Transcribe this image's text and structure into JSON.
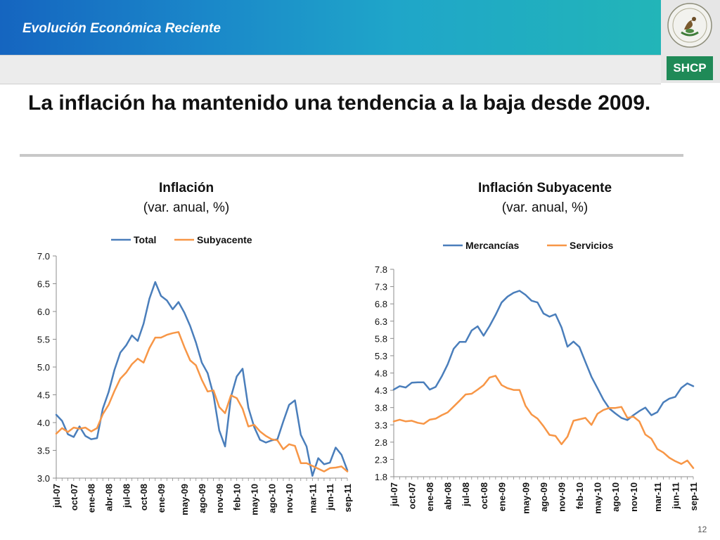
{
  "header": {
    "title": "Evolución Económica Reciente",
    "logo_label": "SHCP",
    "seal_text": "ESTADOS UNIDOS MEXICANOS"
  },
  "headline": "La inflación ha mantenido una tendencia a la baja desde 2009.",
  "page_number": "12",
  "colors": {
    "header_blue": "#1a86c9",
    "header_teal": "#22b5b8",
    "shcp_green": "#1f8a57",
    "series_blue": "#4a7ebb",
    "series_orange": "#f79646"
  },
  "chart_data": [
    {
      "type": "line",
      "title": "Inflación",
      "subtitle": "(var. anual, %)",
      "xlabel": "",
      "ylabel": "",
      "ylim": [
        3.0,
        7.0
      ],
      "yticks": [
        "3.0",
        "3.5",
        "4.0",
        "4.5",
        "5.0",
        "5.5",
        "6.0",
        "6.5",
        "7.0"
      ],
      "grid": false,
      "legend": "top-center",
      "x": [
        "jul-07",
        "ago-07",
        "sep-07",
        "oct-07",
        "nov-07",
        "dic-07",
        "ene-08",
        "feb-08",
        "mar-08",
        "abr-08",
        "may-08",
        "jun-08",
        "jul-08",
        "ago-08",
        "sep-08",
        "oct-08",
        "nov-08",
        "dic-08",
        "ene-09",
        "feb-09",
        "mar-09",
        "abr-09",
        "may-09",
        "jun-09",
        "jul-09",
        "ago-09",
        "sep-09",
        "oct-09",
        "nov-09",
        "dic-09",
        "ene-10",
        "feb-10",
        "mar-10",
        "abr-10",
        "may-10",
        "jun-10",
        "jul-10",
        "ago-10",
        "sep-10",
        "oct-10",
        "nov-10",
        "dic-10",
        "ene-11",
        "feb-11",
        "mar-11",
        "abr-11",
        "may-11",
        "jun-11",
        "jul-11",
        "ago-11",
        "sep-11"
      ],
      "xtick_labels": [
        "jul-07",
        "oct-07",
        "ene-08",
        "abr-08",
        "jul-08",
        "oct-08",
        "ene-09",
        "may-09",
        "ago-09",
        "nov-09",
        "feb-10",
        "may-10",
        "ago-10",
        "nov-10",
        "mar-11",
        "jun-11",
        "sep-11"
      ],
      "series": [
        {
          "name": "Total",
          "color": "#4a7ebb",
          "values": [
            4.14,
            4.03,
            3.79,
            3.74,
            3.93,
            3.76,
            3.7,
            3.72,
            4.25,
            4.55,
            4.95,
            5.26,
            5.39,
            5.57,
            5.47,
            5.78,
            6.23,
            6.53,
            6.28,
            6.2,
            6.04,
            6.17,
            5.98,
            5.74,
            5.44,
            5.08,
            4.89,
            4.5,
            3.86,
            3.57,
            4.46,
            4.83,
            4.97,
            4.27,
            3.92,
            3.69,
            3.64,
            3.68,
            3.7,
            4.02,
            4.32,
            4.4,
            3.78,
            3.57,
            3.04,
            3.36,
            3.25,
            3.28,
            3.55,
            3.42,
            3.14
          ]
        },
        {
          "name": "Subyacente",
          "color": "#f79646",
          "values": [
            3.8,
            3.9,
            3.83,
            3.91,
            3.89,
            3.91,
            3.84,
            3.9,
            4.15,
            4.32,
            4.57,
            4.79,
            4.9,
            5.05,
            5.15,
            5.08,
            5.34,
            5.53,
            5.53,
            5.58,
            5.61,
            5.63,
            5.36,
            5.12,
            5.03,
            4.77,
            4.56,
            4.58,
            4.28,
            4.17,
            4.49,
            4.44,
            4.25,
            3.93,
            3.96,
            3.84,
            3.76,
            3.7,
            3.68,
            3.52,
            3.61,
            3.58,
            3.27,
            3.27,
            3.22,
            3.17,
            3.12,
            3.18,
            3.19,
            3.21,
            3.12
          ]
        }
      ]
    },
    {
      "type": "line",
      "title": "Inflación Subyacente",
      "subtitle": "(var. anual, %)",
      "xlabel": "",
      "ylabel": "",
      "ylim": [
        1.8,
        7.8
      ],
      "yticks": [
        "1.8",
        "2.3",
        "2.8",
        "3.3",
        "3.8",
        "4.3",
        "4.8",
        "5.3",
        "5.8",
        "6.3",
        "6.8",
        "7.3",
        "7.8"
      ],
      "grid": false,
      "legend": "top-center",
      "x": [
        "jul-07",
        "ago-07",
        "sep-07",
        "oct-07",
        "nov-07",
        "dic-07",
        "ene-08",
        "feb-08",
        "mar-08",
        "abr-08",
        "may-08",
        "jun-08",
        "jul-08",
        "ago-08",
        "sep-08",
        "oct-08",
        "nov-08",
        "dic-08",
        "ene-09",
        "feb-09",
        "mar-09",
        "abr-09",
        "may-09",
        "jun-09",
        "jul-09",
        "ago-09",
        "sep-09",
        "oct-09",
        "nov-09",
        "dic-09",
        "ene-10",
        "feb-10",
        "mar-10",
        "abr-10",
        "may-10",
        "jun-10",
        "jul-10",
        "ago-10",
        "sep-10",
        "oct-10",
        "nov-10",
        "dic-10",
        "ene-11",
        "feb-11",
        "mar-11",
        "abr-11",
        "may-11",
        "jun-11",
        "jul-11",
        "ago-11",
        "sep-11"
      ],
      "xtick_labels": [
        "jul-07",
        "oct-07",
        "ene-08",
        "abr-08",
        "jul-08",
        "oct-08",
        "ene-09",
        "may-09",
        "ago-09",
        "nov-09",
        "feb-10",
        "may-10",
        "ago-10",
        "nov-10",
        "mar-11",
        "jun-11",
        "sep-11"
      ],
      "series": [
        {
          "name": "Mercancías",
          "color": "#4a7ebb",
          "values": [
            4.32,
            4.42,
            4.38,
            4.52,
            4.53,
            4.53,
            4.32,
            4.4,
            4.7,
            5.05,
            5.5,
            5.7,
            5.7,
            6.03,
            6.15,
            5.88,
            6.16,
            6.48,
            6.84,
            7.01,
            7.12,
            7.18,
            7.06,
            6.89,
            6.84,
            6.52,
            6.43,
            6.5,
            6.12,
            5.56,
            5.71,
            5.55,
            5.12,
            4.69,
            4.36,
            4.03,
            3.77,
            3.63,
            3.5,
            3.44,
            3.58,
            3.7,
            3.8,
            3.58,
            3.67,
            3.95,
            4.06,
            4.11,
            4.37,
            4.5,
            4.42
          ]
        },
        {
          "name": "Servicios",
          "color": "#f79646",
          "values": [
            3.4,
            3.45,
            3.4,
            3.42,
            3.36,
            3.33,
            3.45,
            3.48,
            3.58,
            3.66,
            3.83,
            4.0,
            4.18,
            4.2,
            4.32,
            4.45,
            4.67,
            4.72,
            4.45,
            4.36,
            4.31,
            4.31,
            3.85,
            3.6,
            3.48,
            3.26,
            3.01,
            2.98,
            2.74,
            2.96,
            3.42,
            3.46,
            3.5,
            3.3,
            3.62,
            3.73,
            3.79,
            3.79,
            3.82,
            3.5,
            3.54,
            3.4,
            3.02,
            2.9,
            2.6,
            2.5,
            2.35,
            2.25,
            2.17,
            2.27,
            2.05
          ]
        }
      ]
    }
  ]
}
